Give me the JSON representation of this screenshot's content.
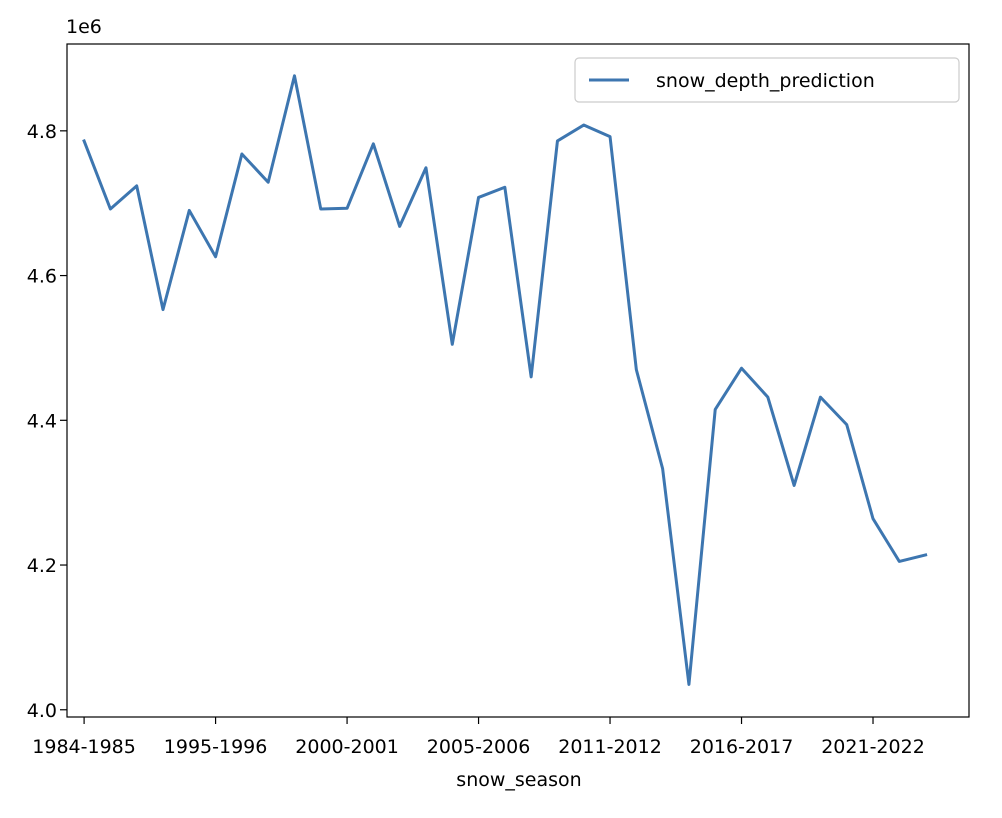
{
  "chart_data": {
    "type": "line",
    "title": "",
    "xlabel": "snow_season",
    "ylabel": "",
    "y_offset_text": "1e6",
    "ylim": [
      3.99,
      4.92
    ],
    "yticks": [
      4.0,
      4.2,
      4.4,
      4.6,
      4.8
    ],
    "ytick_labels": [
      "4.0",
      "4.2",
      "4.4",
      "4.6",
      "4.8"
    ],
    "xlim": [
      -0.65,
      33.65
    ],
    "xtick_positions": [
      0,
      5,
      10,
      15,
      20,
      25,
      30
    ],
    "xtick_labels": [
      "1984-1985",
      "1995-1996",
      "2000-2001",
      "2005-2006",
      "2011-2012",
      "2016-2017",
      "2021-2022"
    ],
    "legend_position": "top-right",
    "grid": false,
    "color": "#3d76b0",
    "series": [
      {
        "name": "snow_depth_prediction",
        "values": [
          4.786,
          4.692,
          4.724,
          4.553,
          4.69,
          4.626,
          4.768,
          4.729,
          4.876,
          4.692,
          4.693,
          4.782,
          4.668,
          4.749,
          4.505,
          4.708,
          4.722,
          4.46,
          4.786,
          4.808,
          4.792,
          4.47,
          4.333,
          4.035,
          4.415,
          4.472,
          4.432,
          4.31,
          4.432,
          4.394,
          4.264,
          4.205,
          4.214
        ]
      }
    ]
  }
}
